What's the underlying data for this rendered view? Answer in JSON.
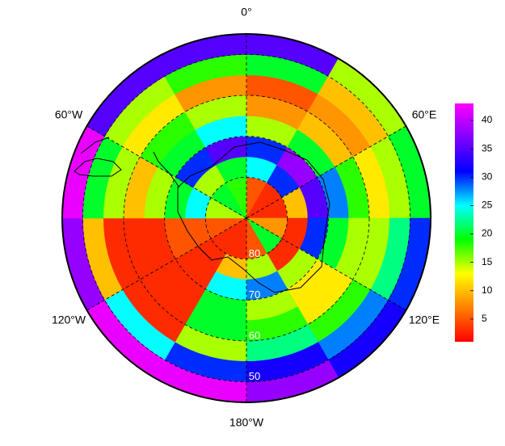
{
  "chart_data": {
    "type": "polar-heatmap",
    "lon_labels": [
      {
        "value": 0,
        "label": "0°"
      },
      {
        "value": 60,
        "label": "60°E"
      },
      {
        "value": 120,
        "label": "120°E"
      },
      {
        "value": 180,
        "label": "180°W"
      },
      {
        "value": 240,
        "label": "120°W"
      },
      {
        "value": 300,
        "label": "60°W"
      }
    ],
    "lat_labels": [
      {
        "value": -80,
        "label": "80"
      },
      {
        "value": -70,
        "label": "70"
      },
      {
        "value": -60,
        "label": "60"
      },
      {
        "value": -50,
        "label": "50"
      }
    ],
    "lon_edges": [
      0,
      30,
      60,
      90,
      120,
      150,
      180,
      210,
      240,
      270,
      300,
      330,
      360
    ],
    "lat_edges": [
      -90,
      -80,
      -75,
      -70,
      -65,
      -60,
      -55,
      -50,
      -45
    ],
    "values": [
      [
        5,
        3,
        3,
        8,
        20,
        5,
        3,
        3,
        5,
        15,
        20,
        18
      ],
      [
        25,
        30,
        10,
        3,
        3,
        15,
        10,
        3,
        5,
        25,
        15,
        20
      ],
      [
        30,
        38,
        35,
        30,
        15,
        28,
        25,
        3,
        5,
        20,
        30,
        35
      ],
      [
        15,
        20,
        28,
        20,
        12,
        15,
        20,
        3,
        3,
        15,
        20,
        25
      ],
      [
        8,
        10,
        18,
        15,
        12,
        18,
        20,
        3,
        3,
        10,
        18,
        15
      ],
      [
        5,
        8,
        12,
        15,
        18,
        22,
        15,
        3,
        3,
        15,
        12,
        8
      ],
      [
        20,
        10,
        15,
        22,
        28,
        32,
        30,
        25,
        10,
        20,
        15,
        18
      ],
      [
        35,
        15,
        20,
        30,
        32,
        38,
        42,
        42,
        38,
        42,
        35,
        35
      ]
    ],
    "colorscale": [
      "#ff0000",
      "#ff8000",
      "#ffff00",
      "#00ff00",
      "#00ffff",
      "#0000ff",
      "#8000ff",
      "#ff00ff"
    ],
    "clim": [
      1,
      43
    ],
    "cticks": [
      5,
      10,
      15,
      20,
      25,
      30,
      35,
      40
    ]
  }
}
